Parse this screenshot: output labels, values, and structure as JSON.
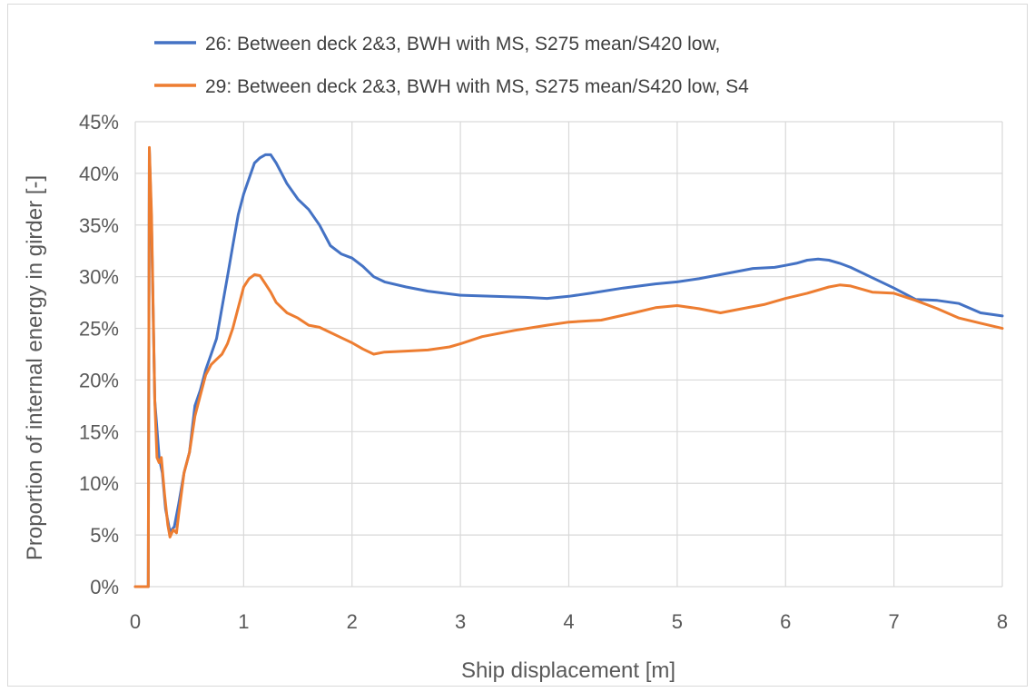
{
  "chart_data": {
    "type": "line",
    "title": "",
    "xlabel": "Ship displacement [m]",
    "ylabel": "Proportion of internal energy in girder [-]",
    "xlim": [
      0,
      8
    ],
    "ylim": [
      0,
      45
    ],
    "x_ticks": [
      "0",
      "1",
      "2",
      "3",
      "4",
      "5",
      "6",
      "7",
      "8"
    ],
    "y_ticks": [
      "0%",
      "5%",
      "10%",
      "15%",
      "20%",
      "25%",
      "30%",
      "35%",
      "40%",
      "45%"
    ],
    "grid": true,
    "legend_position": "top",
    "series": [
      {
        "name": "26: Between deck 2&3, BWH with MS, S275 mean/S420 low,",
        "color": "#4472c4",
        "x": [
          0.0,
          0.12,
          0.13,
          0.15,
          0.18,
          0.22,
          0.25,
          0.28,
          0.32,
          0.36,
          0.4,
          0.45,
          0.5,
          0.55,
          0.6,
          0.65,
          0.7,
          0.75,
          0.8,
          0.85,
          0.9,
          0.95,
          1.0,
          1.05,
          1.1,
          1.15,
          1.2,
          1.25,
          1.3,
          1.35,
          1.4,
          1.5,
          1.6,
          1.7,
          1.8,
          1.9,
          2.0,
          2.1,
          2.2,
          2.3,
          2.5,
          2.7,
          3.0,
          3.3,
          3.6,
          3.8,
          4.0,
          4.2,
          4.5,
          4.8,
          5.0,
          5.2,
          5.5,
          5.7,
          5.9,
          6.0,
          6.1,
          6.2,
          6.3,
          6.4,
          6.5,
          6.6,
          6.8,
          7.0,
          7.2,
          7.4,
          7.6,
          7.8,
          8.0
        ],
        "y": [
          0,
          0,
          42.3,
          35,
          18,
          12.5,
          11,
          7.5,
          5.3,
          5.8,
          8,
          11,
          13,
          17.5,
          19,
          21,
          22.5,
          24,
          27,
          30,
          33,
          36,
          38,
          39.5,
          41,
          41.5,
          41.8,
          41.8,
          41,
          40,
          39,
          37.5,
          36.5,
          35,
          33,
          32.2,
          31.8,
          31,
          30,
          29.5,
          29,
          28.6,
          28.2,
          28.1,
          28,
          27.9,
          28.1,
          28.4,
          28.9,
          29.3,
          29.5,
          29.8,
          30.4,
          30.8,
          30.9,
          31.1,
          31.3,
          31.6,
          31.7,
          31.6,
          31.3,
          30.9,
          29.9,
          28.9,
          27.8,
          27.7,
          27.4,
          26.5,
          26.2
        ]
      },
      {
        "name": "29: Between deck 2&3, BWH with MS, S275 mean/S420 low, S4",
        "color": "#ed7d31",
        "x": [
          0.0,
          0.12,
          0.13,
          0.15,
          0.18,
          0.2,
          0.22,
          0.24,
          0.27,
          0.3,
          0.32,
          0.35,
          0.38,
          0.4,
          0.45,
          0.5,
          0.55,
          0.6,
          0.65,
          0.7,
          0.75,
          0.8,
          0.85,
          0.9,
          0.95,
          1.0,
          1.05,
          1.1,
          1.15,
          1.2,
          1.25,
          1.3,
          1.4,
          1.5,
          1.6,
          1.7,
          1.8,
          1.9,
          2.0,
          2.1,
          2.2,
          2.3,
          2.5,
          2.7,
          2.9,
          3.0,
          3.2,
          3.5,
          3.8,
          4.0,
          4.3,
          4.6,
          4.8,
          5.0,
          5.2,
          5.4,
          5.6,
          5.8,
          6.0,
          6.2,
          6.4,
          6.5,
          6.6,
          6.8,
          7.0,
          7.2,
          7.4,
          7.6,
          7.8,
          8.0
        ],
        "y": [
          0,
          0,
          42.5,
          36,
          18,
          12.5,
          12,
          12.5,
          9,
          6,
          4.8,
          5.5,
          5.2,
          7,
          11,
          13,
          16.5,
          18.5,
          20.5,
          21.5,
          22,
          22.5,
          23.5,
          25,
          27,
          29,
          29.8,
          30.2,
          30.1,
          29.3,
          28.5,
          27.5,
          26.5,
          26,
          25.3,
          25.1,
          24.6,
          24.1,
          23.6,
          23,
          22.5,
          22.7,
          22.8,
          22.9,
          23.2,
          23.5,
          24.2,
          24.8,
          25.3,
          25.6,
          25.8,
          26.5,
          27,
          27.2,
          26.9,
          26.5,
          26.9,
          27.3,
          27.9,
          28.4,
          29,
          29.2,
          29.1,
          28.5,
          28.4,
          27.7,
          26.9,
          26,
          25.5,
          25
        ]
      }
    ]
  }
}
